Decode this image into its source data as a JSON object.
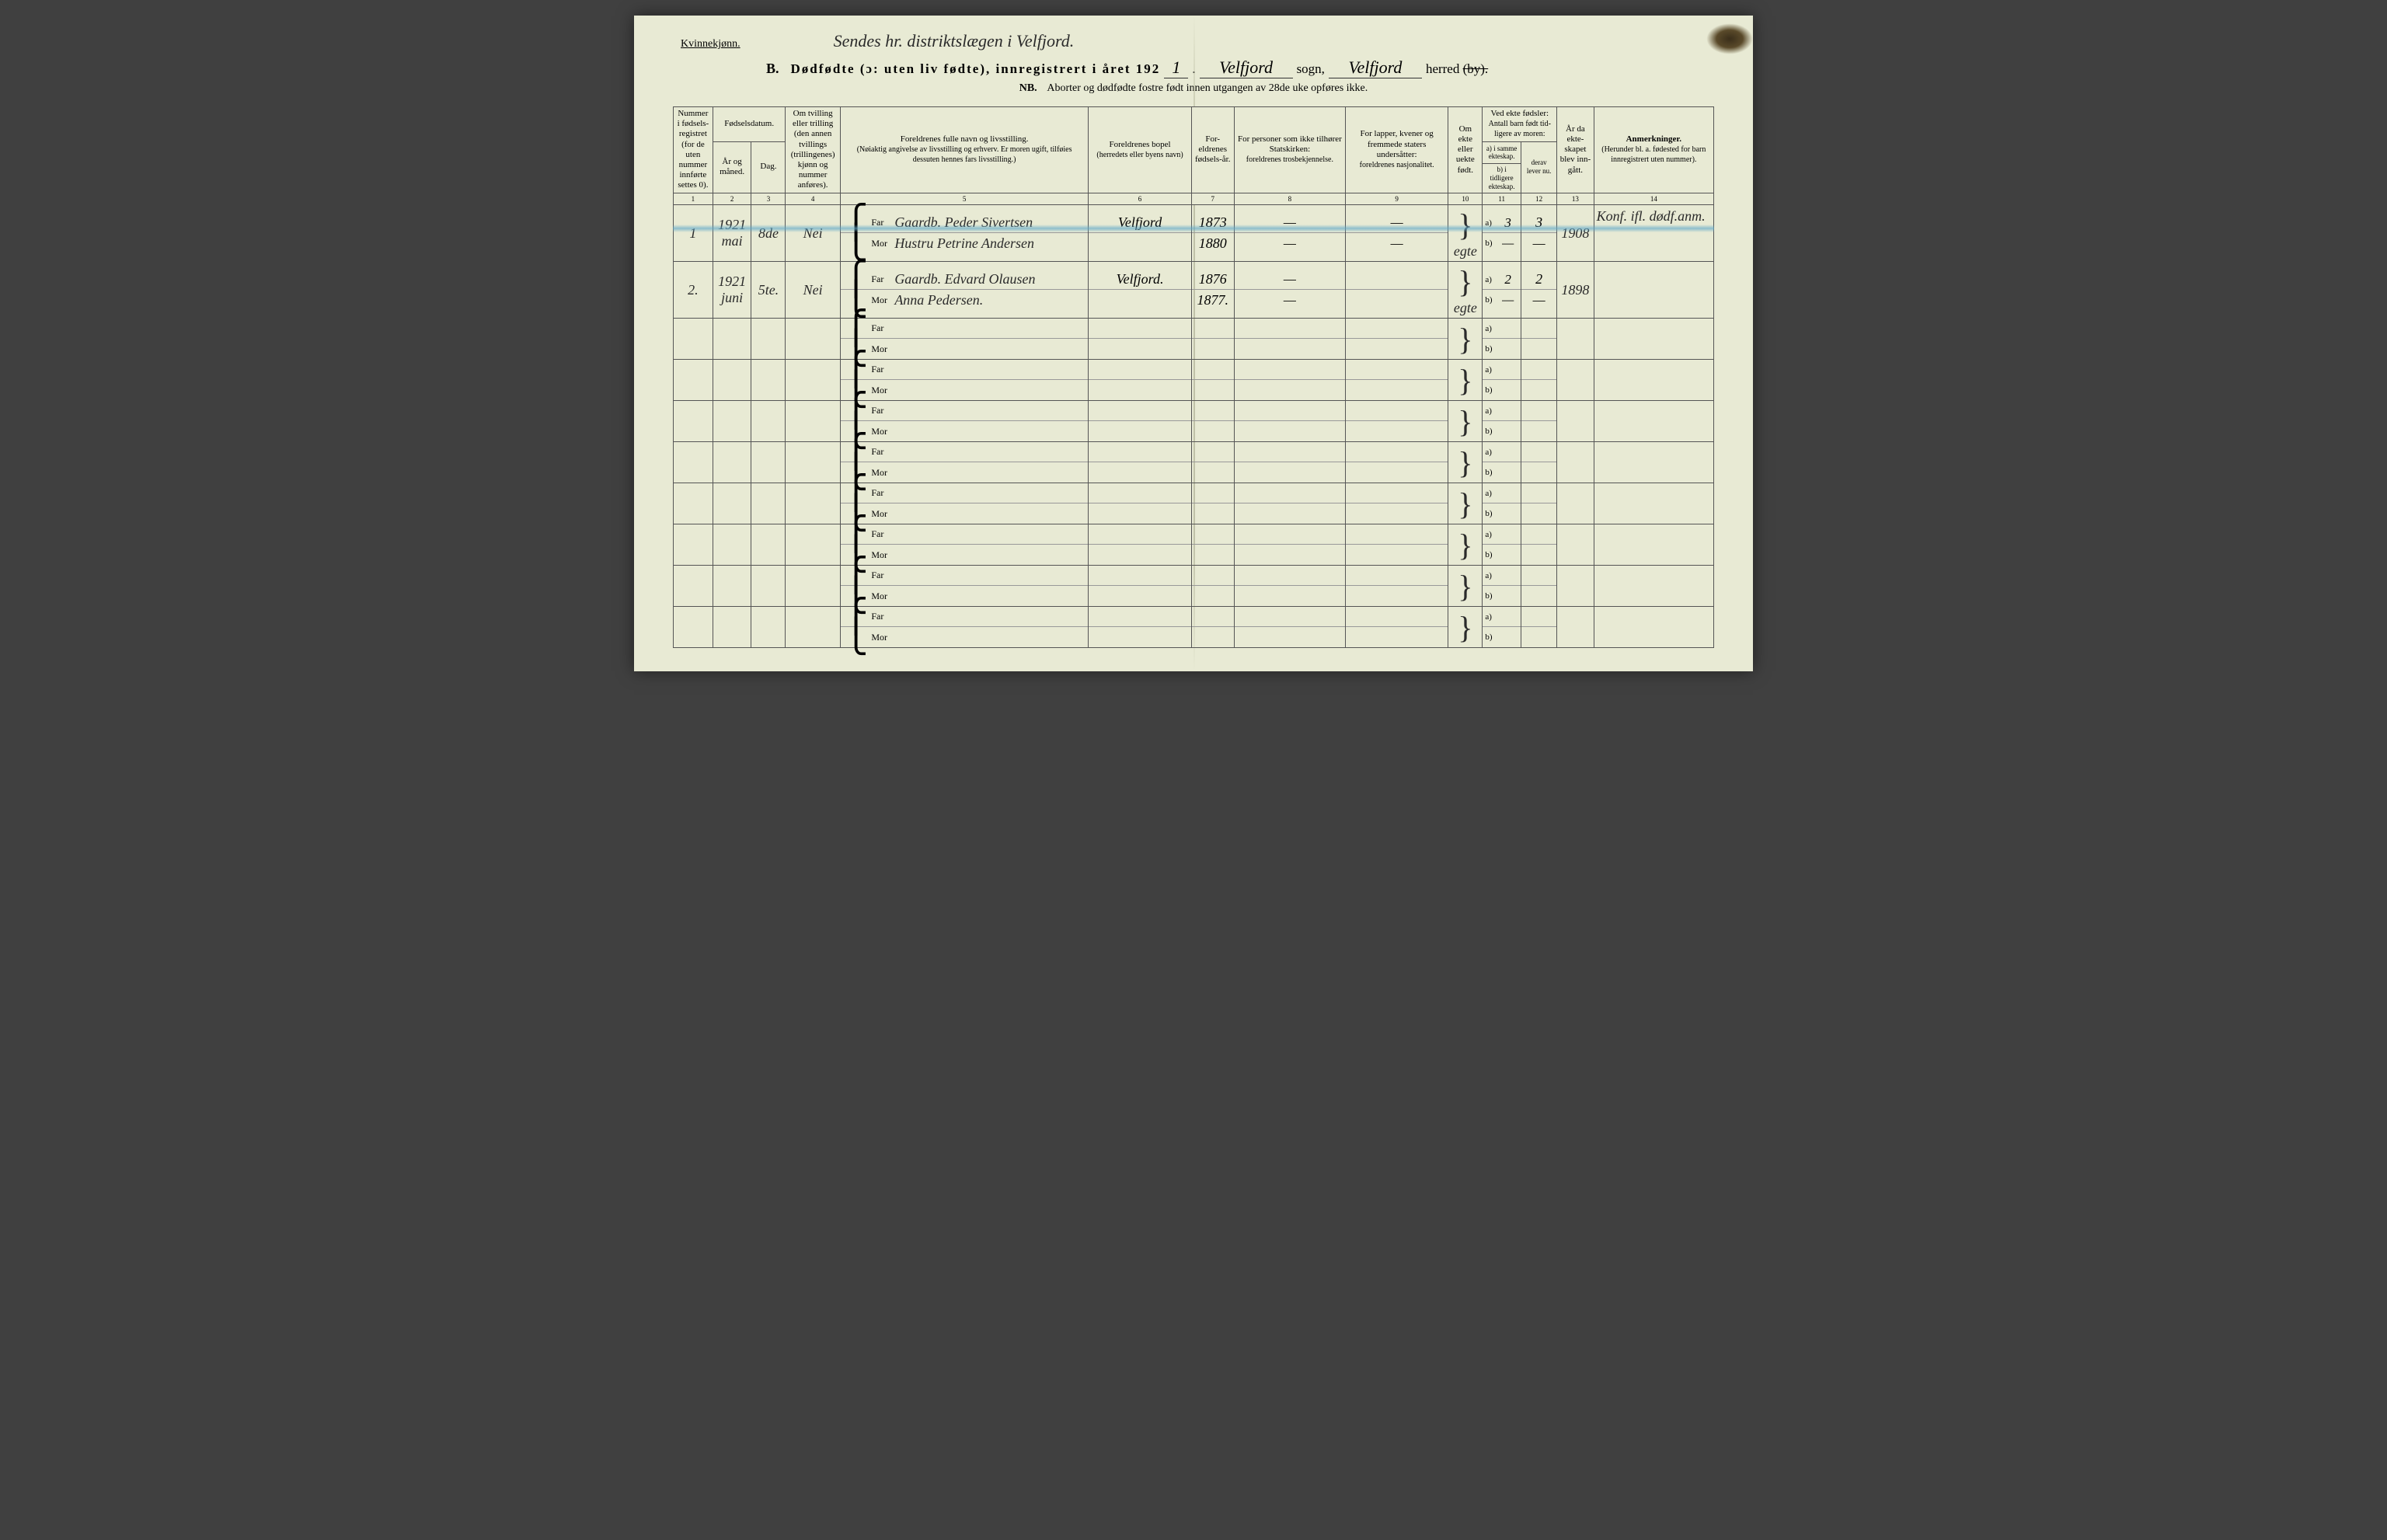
{
  "page": {
    "background_color": "#e8ead4",
    "ink_color": "#2a2a2a",
    "rule_color": "#555555",
    "highlight_color": "#5fa8c8"
  },
  "header": {
    "gender_label": "Kvinnekjønn.",
    "handwritten_note": "Sendes hr. distriktslægen i Velfjord.",
    "section_letter": "B.",
    "title_part1": "Dødfødte (ɔ: uten liv fødte), innregistrert i året 192",
    "year_suffix": "1",
    "sogn_value": "Velfjord",
    "sogn_label": "sogn,",
    "herred_value": "Velfjord",
    "herred_label": "herred",
    "by_struck": "(by).",
    "subtitle_nb": "NB.",
    "subtitle_text": "Aborter og dødfødte fostre født innen utgangen av 28de uke opføres ikke."
  },
  "columns": {
    "c1": "Nummer i fødsels-registret (for de uten nummer innførte settes 0).",
    "c23_group": "Fødselsdatum.",
    "c2": "År og måned.",
    "c3": "Dag.",
    "c4": "Om tvilling eller trilling (den annen tvillings (trillingenes) kjønn og nummer anføres).",
    "c5": "Foreldrenes fulle navn og livsstilling.",
    "c5_sub": "(Nøiaktig angivelse av livsstilling og erhverv. Er moren ugift, tilføies dessuten hennes fars livsstilling.)",
    "c6": "Foreldrenes bopel",
    "c6_sub": "(herredets eller byens navn)",
    "c7": "For-eldrenes fødsels-år.",
    "c8": "For personer som ikke tilhører Statskirken:",
    "c8_sub": "foreldrenes trosbekjennelse.",
    "c9": "For lapper, kvener og fremmede staters undersåtter:",
    "c9_sub": "foreldrenes nasjonalitet.",
    "c10": "Om ekte eller uekte født.",
    "c11_12_group": "Ved ekte fødsler:",
    "c11_12_sub": "Antall barn født tid-ligere av moren:",
    "c11": "a) i samme ekteskap.",
    "c11b": "b) i tidligere ekteskap.",
    "c12": "derav lever nu.",
    "c13": "År da ekte-skapet blev inn-gått.",
    "c14": "Anmerkninger.",
    "c14_sub": "(Herunder bl. a. fødested for barn innregistrert uten nummer)."
  },
  "column_numbers": [
    "1",
    "2",
    "3",
    "4",
    "5",
    "6",
    "7",
    "8",
    "9",
    "10",
    "11",
    "12",
    "13",
    "14"
  ],
  "far_label": "Far",
  "mor_label": "Mor",
  "ab_a": "a)",
  "ab_b": "b)",
  "rows": [
    {
      "num": "1",
      "year_month": "1921 mai",
      "day": "8de",
      "twin": "Nei",
      "far": "Gaardb. Peder Sivertsen",
      "mor": "Hustru Petrine Andersen",
      "bopel": "Velfjord",
      "far_year": "1873",
      "mor_year": "1880",
      "c8f": "—",
      "c8m": "—",
      "c9f": "—",
      "c9m": "—",
      "ekte": "egte",
      "a_val": "3",
      "a_lever": "3",
      "b_val": "—",
      "b_lever": "—",
      "year_married": "1908",
      "remark": "Konf. ifl. dødf.anm.",
      "highlighted": true
    },
    {
      "num": "2.",
      "year_month": "1921 juni",
      "day": "5te.",
      "twin": "Nei",
      "far": "Gaardb. Edvard Olausen",
      "mor": "Anna Pedersen.",
      "bopel": "Velfjord.",
      "far_year": "1876",
      "mor_year": "1877.",
      "c8f": "—",
      "c8m": "—",
      "c9f": "",
      "c9m": "",
      "ekte": "egte",
      "a_val": "2",
      "a_lever": "2",
      "b_val": "—",
      "b_lever": "—",
      "year_married": "1898",
      "remark": ""
    }
  ],
  "empty_row_count": 8
}
